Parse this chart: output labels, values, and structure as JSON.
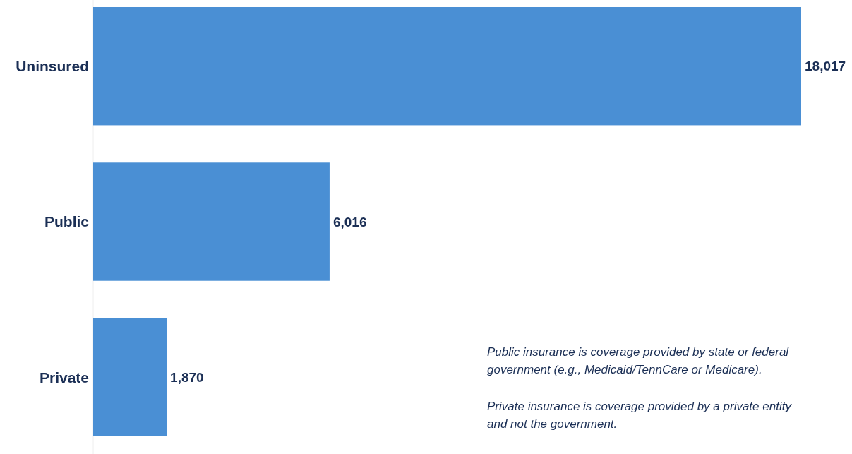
{
  "chart_data": {
    "type": "bar",
    "orientation": "horizontal",
    "categories": [
      "Uninsured",
      "Public",
      "Private"
    ],
    "values": [
      18017,
      6016,
      1870
    ],
    "color": "#4a8fd4",
    "data_labels": true,
    "value_labels": [
      "18,017",
      "6,016",
      "1,870"
    ],
    "annotations": [
      "Public insurance is coverage provided by state or federal government (e.g., Medicaid/TennCare or Medicare).",
      "Private insurance is coverage provided by a private entity and not the government."
    ]
  }
}
